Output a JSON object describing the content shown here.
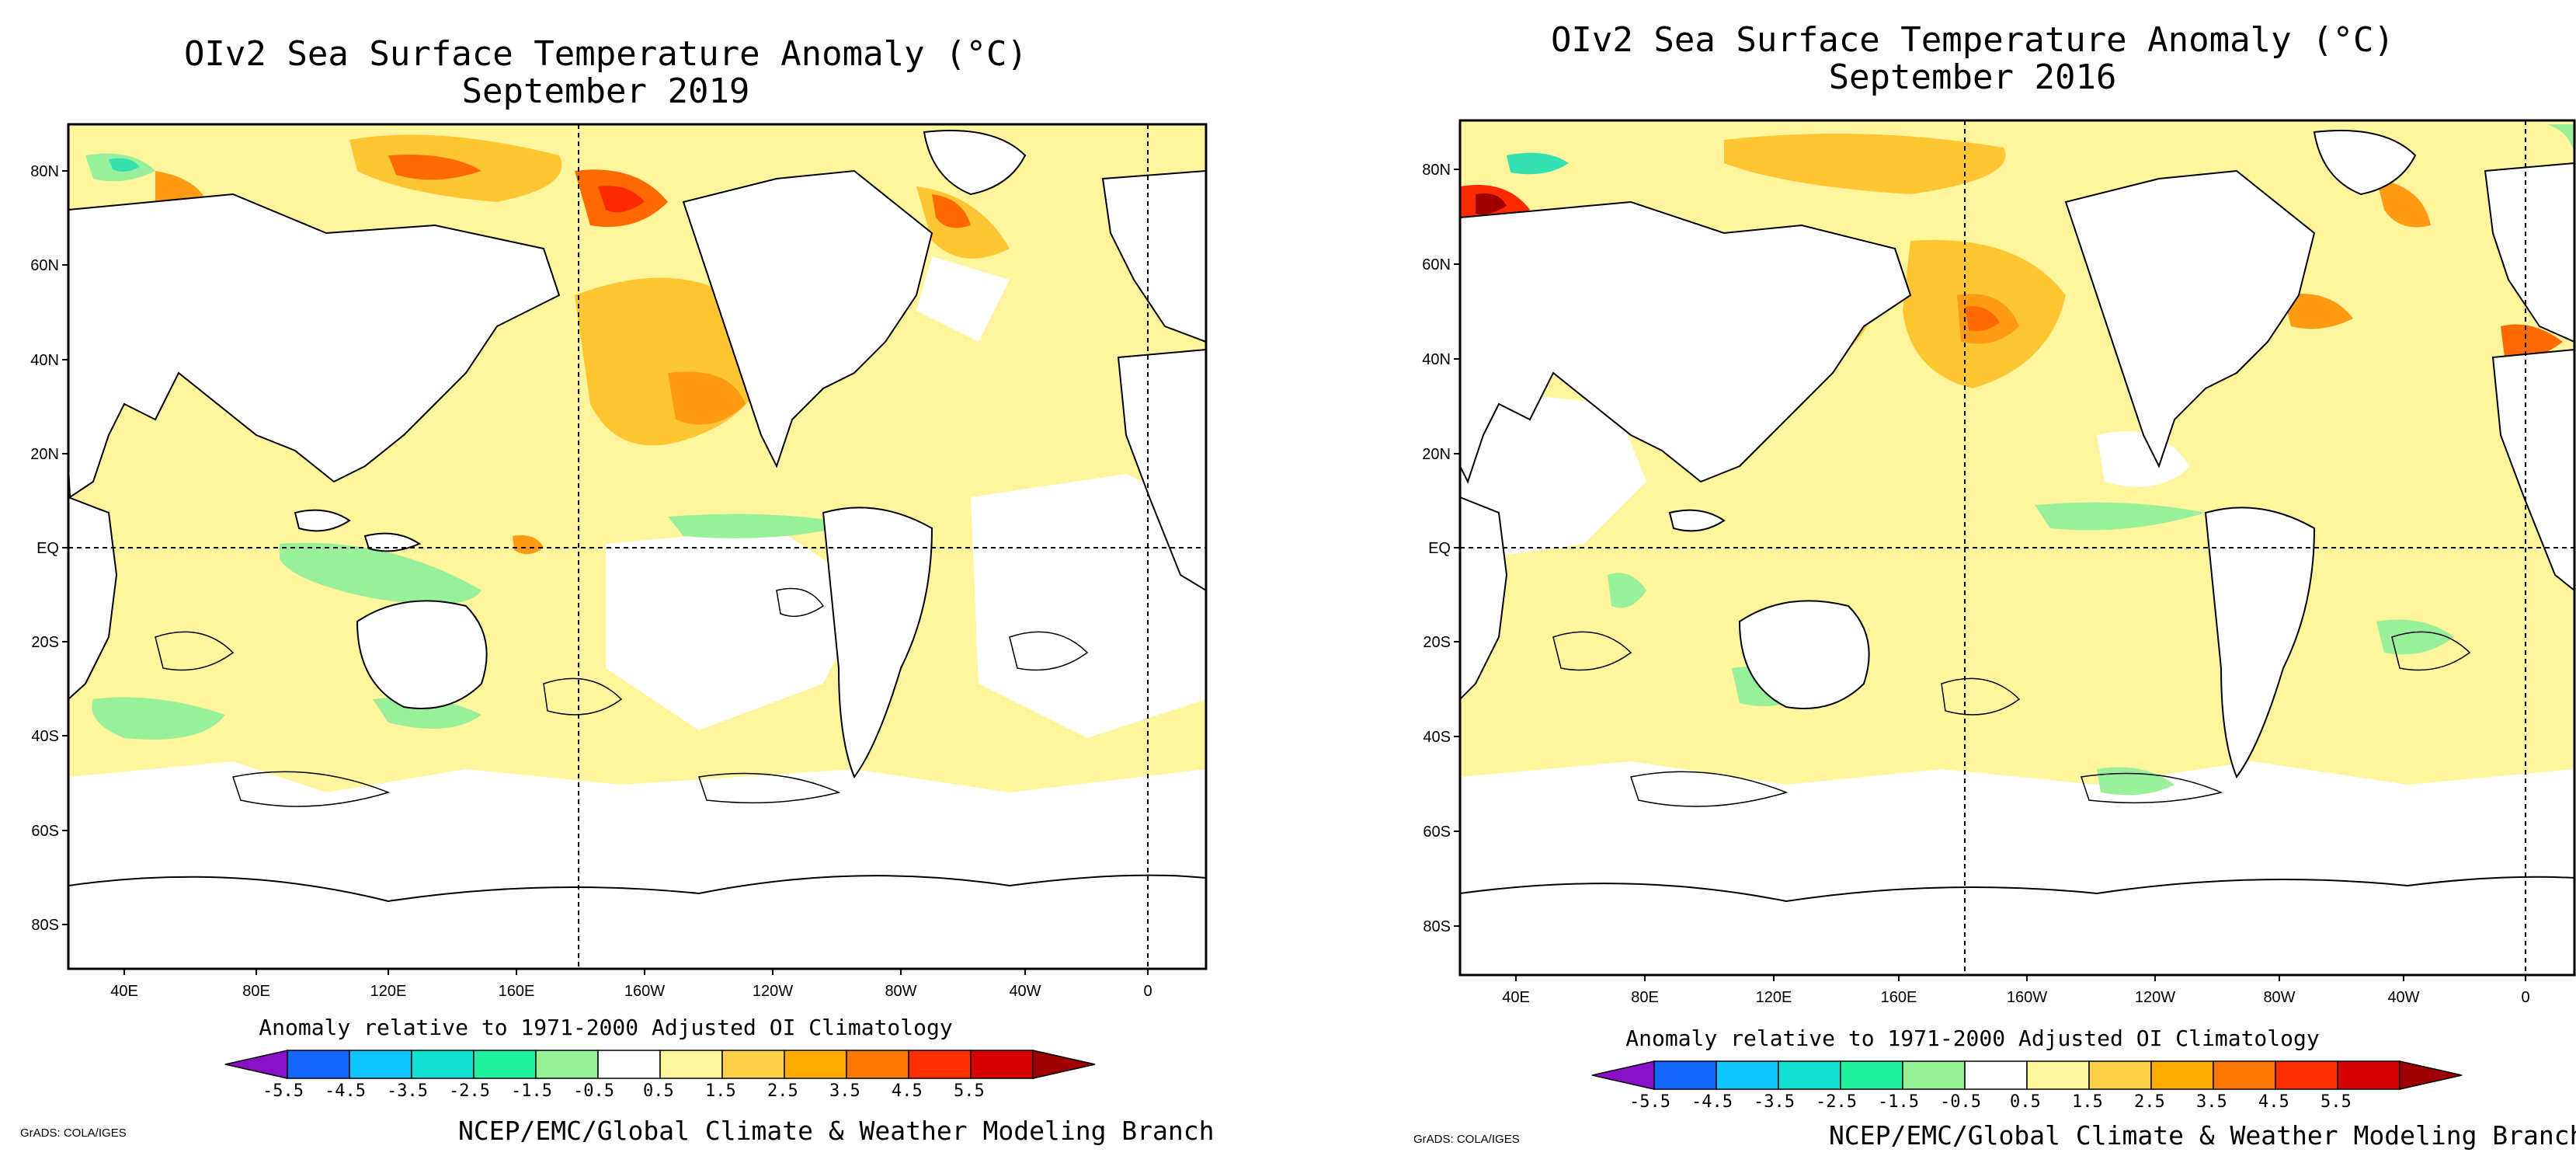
{
  "panels": [
    {
      "title": "OIv2 Sea Surface Temperature Anomaly (°C)",
      "subtitle": "September 2019",
      "year": "2019",
      "lat_labels": [
        "80N",
        "60N",
        "40N",
        "20N",
        "EQ",
        "20S",
        "40S",
        "60S",
        "80S"
      ],
      "lon_labels": [
        "40E",
        "80E",
        "120E",
        "160E",
        "160W",
        "120W",
        "80W",
        "40W",
        "0"
      ],
      "colorbar_note": "Anomaly relative to 1971-2000 Adjusted OI Climatology",
      "colorbar_ticks": [
        "-5.5",
        "-4.5",
        "-3.5",
        "-2.5",
        "-1.5",
        "-0.5",
        "0.5",
        "1.5",
        "2.5",
        "3.5",
        "4.5",
        "5.5"
      ],
      "credit": "NCEP/EMC/Global Climate & Weather Modeling Branch",
      "grads_label": "GrADS: COLA/IGES"
    },
    {
      "title": "OIv2 Sea Surface Temperature Anomaly (°C)",
      "subtitle": "September 2016",
      "year": "2016",
      "lat_labels": [
        "80N",
        "60N",
        "40N",
        "20N",
        "EQ",
        "20S",
        "40S",
        "60S",
        "80S"
      ],
      "lon_labels": [
        "40E",
        "80E",
        "120E",
        "160E",
        "160W",
        "120W",
        "80W",
        "40W",
        "0"
      ],
      "colorbar_note": "Anomaly relative to 1971-2000 Adjusted OI Climatology",
      "colorbar_ticks": [
        "-5.5",
        "-4.5",
        "-3.5",
        "-2.5",
        "-1.5",
        "-0.5",
        "0.5",
        "1.5",
        "2.5",
        "3.5",
        "4.5",
        "5.5"
      ],
      "credit": "NCEP/EMC/Global Climate & Weather Modeling Branch",
      "grads_label": "GrADS: COLA/IGES"
    }
  ],
  "colors": {
    "land": "#ffffff",
    "neutral": "#ffffff",
    "warm1": "#fff59d",
    "warm2": "#ffc634",
    "warm3": "#ff9a13",
    "warm4": "#ff6a00",
    "warm5": "#ff2a00",
    "cool1": "#98f09a",
    "cool2": "#36e0b0",
    "colorbar": [
      "#8a10c8",
      "#1565ff",
      "#10c5ff",
      "#10e0d0",
      "#20f0a0",
      "#98f098",
      "#ffffff",
      "#fff59d",
      "#ffd04a",
      "#ffaa00",
      "#ff7800",
      "#ff3000",
      "#d80000",
      "#a00000"
    ]
  }
}
